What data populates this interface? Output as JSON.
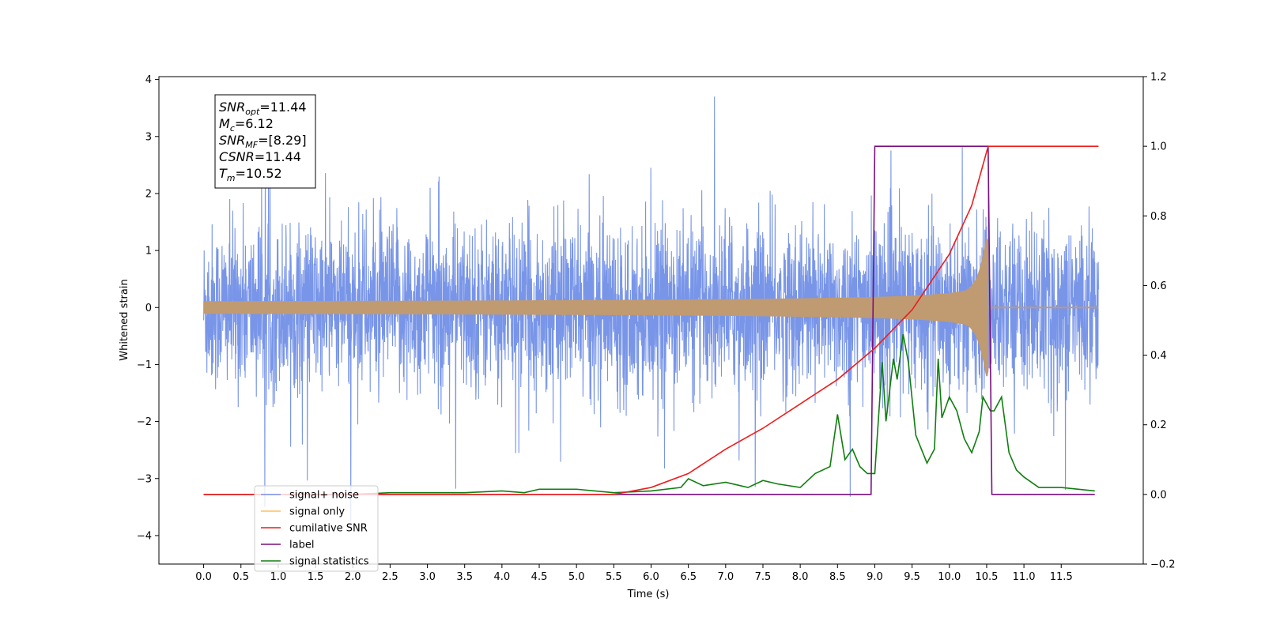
{
  "chart_data": {
    "type": "line",
    "xlabel": "Time (s)",
    "ylabel": "Whitened strain",
    "xlim": [
      -0.6,
      12.6
    ],
    "ylim": [
      -4.5,
      4.05
    ],
    "y2lim": [
      -0.2,
      1.2
    ],
    "x_ticks": [
      "0.0",
      "0.5",
      "1.0",
      "1.5",
      "2.0",
      "2.5",
      "3.0",
      "3.5",
      "4.0",
      "4.5",
      "5.0",
      "5.5",
      "6.0",
      "6.5",
      "7.0",
      "7.5",
      "8.0",
      "8.5",
      "9.0",
      "9.5",
      "10.0",
      "10.5",
      "11.0",
      "11.5"
    ],
    "y_ticks": [
      "4",
      "3",
      "2",
      "1",
      "0",
      "−1",
      "−2",
      "−3",
      "−4"
    ],
    "y2_ticks": [
      "1.2",
      "1.0",
      "0.8",
      "0.6",
      "0.4",
      "0.2",
      "0.0",
      "−0.2"
    ],
    "grid": false,
    "legend_location": "lower-left",
    "colors": {
      "signal_noise": "#7895e8",
      "signal_only": "#c09a70",
      "signal_only_legend": "#ffbf60",
      "cumulative_snr": "#ee1c1c",
      "label": "#7a0f7f",
      "signal_statistics": "#107e10"
    },
    "series": [
      {
        "name": "signal+ noise",
        "axis": "left",
        "time_range": [
          0.0,
          12.0
        ],
        "amplitude_typical": 1.6,
        "amplitude_max": 3.7
      },
      {
        "name": "signal only",
        "axis": "left",
        "time_range": [
          0.0,
          12.0
        ],
        "merger_time": 10.52,
        "peak_amplitude": 1.2
      },
      {
        "name": "cumilative SNR",
        "axis": "right",
        "x": [
          0.0,
          5.5,
          6.0,
          6.5,
          7.0,
          7.5,
          8.0,
          8.5,
          9.0,
          9.5,
          10.0,
          10.3,
          10.52,
          12.0
        ],
        "y": [
          0.0,
          0.0,
          0.02,
          0.06,
          0.13,
          0.19,
          0.26,
          0.33,
          0.42,
          0.53,
          0.69,
          0.83,
          1.0,
          1.0
        ]
      },
      {
        "name": "label",
        "axis": "right",
        "x": [
          0.0,
          8.95,
          9.0,
          10.52,
          10.57,
          11.95
        ],
        "y": [
          0.0,
          0.0,
          1.0,
          1.0,
          0.0,
          0.0
        ]
      },
      {
        "name": "signal statistics",
        "axis": "right",
        "x": [
          0.0,
          2.0,
          2.5,
          3.0,
          3.5,
          4.0,
          4.3,
          4.5,
          5.0,
          5.5,
          6.0,
          6.4,
          6.5,
          6.7,
          7.0,
          7.3,
          7.5,
          7.7,
          8.0,
          8.2,
          8.4,
          8.5,
          8.6,
          8.7,
          8.8,
          8.9,
          9.0,
          9.1,
          9.15,
          9.25,
          9.3,
          9.38,
          9.45,
          9.55,
          9.7,
          9.8,
          9.85,
          9.9,
          10.0,
          10.1,
          10.2,
          10.3,
          10.4,
          10.45,
          10.55,
          10.6,
          10.7,
          10.8,
          10.9,
          11.0,
          11.2,
          11.5,
          11.95
        ],
        "y": [
          0.0,
          0.0,
          0.005,
          0.005,
          0.005,
          0.01,
          0.005,
          0.015,
          0.015,
          0.005,
          0.01,
          0.02,
          0.045,
          0.025,
          0.035,
          0.02,
          0.04,
          0.03,
          0.02,
          0.06,
          0.08,
          0.23,
          0.1,
          0.13,
          0.08,
          0.06,
          0.06,
          0.38,
          0.21,
          0.39,
          0.33,
          0.46,
          0.38,
          0.17,
          0.09,
          0.13,
          0.39,
          0.22,
          0.28,
          0.24,
          0.16,
          0.12,
          0.18,
          0.28,
          0.24,
          0.24,
          0.28,
          0.12,
          0.07,
          0.05,
          0.02,
          0.02,
          0.01
        ]
      }
    ],
    "annotation": {
      "lines": [
        {
          "main": "SNR",
          "sub": "opt",
          "value": "=11.44"
        },
        {
          "main": "M",
          "sub": "c",
          "value": "=6.12"
        },
        {
          "main": "SNR",
          "sub": "MF",
          "value": "=[8.29]"
        },
        {
          "main": "CSNR",
          "sub": "",
          "value": "=11.44"
        },
        {
          "main": "T",
          "sub": "m",
          "value": "=10.52"
        }
      ]
    }
  }
}
